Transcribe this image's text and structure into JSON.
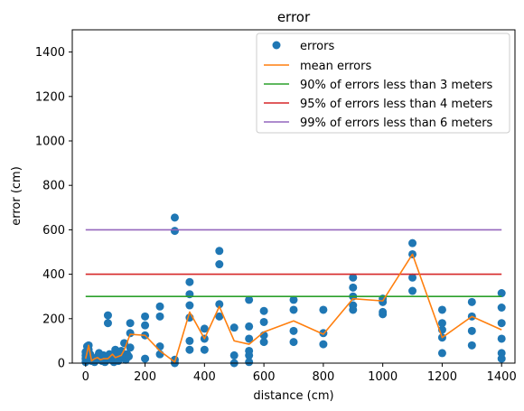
{
  "chart_data": {
    "type": "scatter",
    "title": "error",
    "xlabel": "distance (cm)",
    "ylabel": "error (cm)",
    "xlim": [
      -45,
      1445
    ],
    "ylim": [
      0,
      1500
    ],
    "xticks": [
      0,
      200,
      400,
      600,
      800,
      1000,
      1200,
      1400
    ],
    "yticks": [
      0,
      200,
      400,
      600,
      800,
      1000,
      1200,
      1400
    ],
    "grid": false,
    "legend_position": "top-right",
    "series": [
      {
        "name": "errors",
        "kind": "scatter",
        "color": "#1f77b4",
        "points": [
          [
            0,
            5
          ],
          [
            0,
            20
          ],
          [
            0,
            35
          ],
          [
            0,
            50
          ],
          [
            5,
            75
          ],
          [
            10,
            80
          ],
          [
            10,
            60
          ],
          [
            15,
            40
          ],
          [
            20,
            10
          ],
          [
            20,
            25
          ],
          [
            30,
            5
          ],
          [
            35,
            15
          ],
          [
            40,
            30
          ],
          [
            45,
            45
          ],
          [
            50,
            20
          ],
          [
            55,
            10
          ],
          [
            60,
            35
          ],
          [
            65,
            5
          ],
          [
            70,
            25
          ],
          [
            75,
            180
          ],
          [
            75,
            215
          ],
          [
            80,
            40
          ],
          [
            85,
            15
          ],
          [
            90,
            30
          ],
          [
            95,
            5
          ],
          [
            100,
            60
          ],
          [
            100,
            20
          ],
          [
            105,
            45
          ],
          [
            110,
            10
          ],
          [
            115,
            35
          ],
          [
            120,
            55
          ],
          [
            125,
            25
          ],
          [
            130,
            90
          ],
          [
            135,
            15
          ],
          [
            140,
            40
          ],
          [
            145,
            30
          ],
          [
            150,
            70
          ],
          [
            150,
            135
          ],
          [
            150,
            180
          ],
          [
            200,
            20
          ],
          [
            200,
            125
          ],
          [
            200,
            170
          ],
          [
            200,
            210
          ],
          [
            250,
            40
          ],
          [
            250,
            75
          ],
          [
            250,
            210
          ],
          [
            250,
            255
          ],
          [
            300,
            0
          ],
          [
            300,
            15
          ],
          [
            300,
            595
          ],
          [
            300,
            655
          ],
          [
            350,
            60
          ],
          [
            350,
            100
          ],
          [
            350,
            205
          ],
          [
            350,
            260
          ],
          [
            350,
            310
          ],
          [
            350,
            365
          ],
          [
            400,
            60
          ],
          [
            400,
            110
          ],
          [
            400,
            155
          ],
          [
            450,
            210
          ],
          [
            450,
            265
          ],
          [
            450,
            445
          ],
          [
            450,
            505
          ],
          [
            500,
            0
          ],
          [
            500,
            35
          ],
          [
            500,
            160
          ],
          [
            550,
            5
          ],
          [
            550,
            35
          ],
          [
            550,
            55
          ],
          [
            550,
            110
          ],
          [
            550,
            165
          ],
          [
            550,
            285
          ],
          [
            600,
            95
          ],
          [
            600,
            125
          ],
          [
            600,
            185
          ],
          [
            600,
            235
          ],
          [
            700,
            95
          ],
          [
            700,
            145
          ],
          [
            700,
            240
          ],
          [
            700,
            285
          ],
          [
            800,
            85
          ],
          [
            800,
            135
          ],
          [
            800,
            240
          ],
          [
            900,
            240
          ],
          [
            900,
            260
          ],
          [
            900,
            300
          ],
          [
            900,
            340
          ],
          [
            900,
            385
          ],
          [
            1000,
            220
          ],
          [
            1000,
            230
          ],
          [
            1000,
            275
          ],
          [
            1000,
            290
          ],
          [
            1100,
            325
          ],
          [
            1100,
            385
          ],
          [
            1100,
            490
          ],
          [
            1100,
            540
          ],
          [
            1200,
            45
          ],
          [
            1200,
            115
          ],
          [
            1200,
            150
          ],
          [
            1200,
            180
          ],
          [
            1200,
            240
          ],
          [
            1300,
            80
          ],
          [
            1300,
            145
          ],
          [
            1300,
            210
          ],
          [
            1300,
            275
          ],
          [
            1400,
            20
          ],
          [
            1400,
            45
          ],
          [
            1400,
            110
          ],
          [
            1400,
            180
          ],
          [
            1400,
            250
          ],
          [
            1400,
            315
          ]
        ]
      },
      {
        "name": "mean errors",
        "kind": "line",
        "color": "#ff7f0e",
        "x": [
          0,
          10,
          20,
          30,
          40,
          50,
          60,
          75,
          90,
          100,
          120,
          130,
          150,
          200,
          250,
          300,
          350,
          400,
          450,
          500,
          550,
          600,
          700,
          800,
          900,
          1000,
          1100,
          1200,
          1300,
          1400
        ],
        "y": [
          20,
          80,
          10,
          20,
          25,
          15,
          20,
          20,
          40,
          25,
          35,
          60,
          130,
          125,
          55,
          5,
          230,
          110,
          255,
          100,
          85,
          140,
          190,
          130,
          290,
          280,
          490,
          115,
          210,
          150
        ]
      },
      {
        "name": "90% of errors less than 3 meters",
        "kind": "hline",
        "color": "#2ca02c",
        "y": 300,
        "xmin": 0,
        "xmax": 1400
      },
      {
        "name": "95% of errors less than 4 meters",
        "kind": "hline",
        "color": "#d62728",
        "y": 400,
        "xmin": 0,
        "xmax": 1400
      },
      {
        "name": "99% of errors less than 6 meters",
        "kind": "hline",
        "color": "#9467bd",
        "y": 600,
        "xmin": 0,
        "xmax": 1400
      }
    ]
  }
}
